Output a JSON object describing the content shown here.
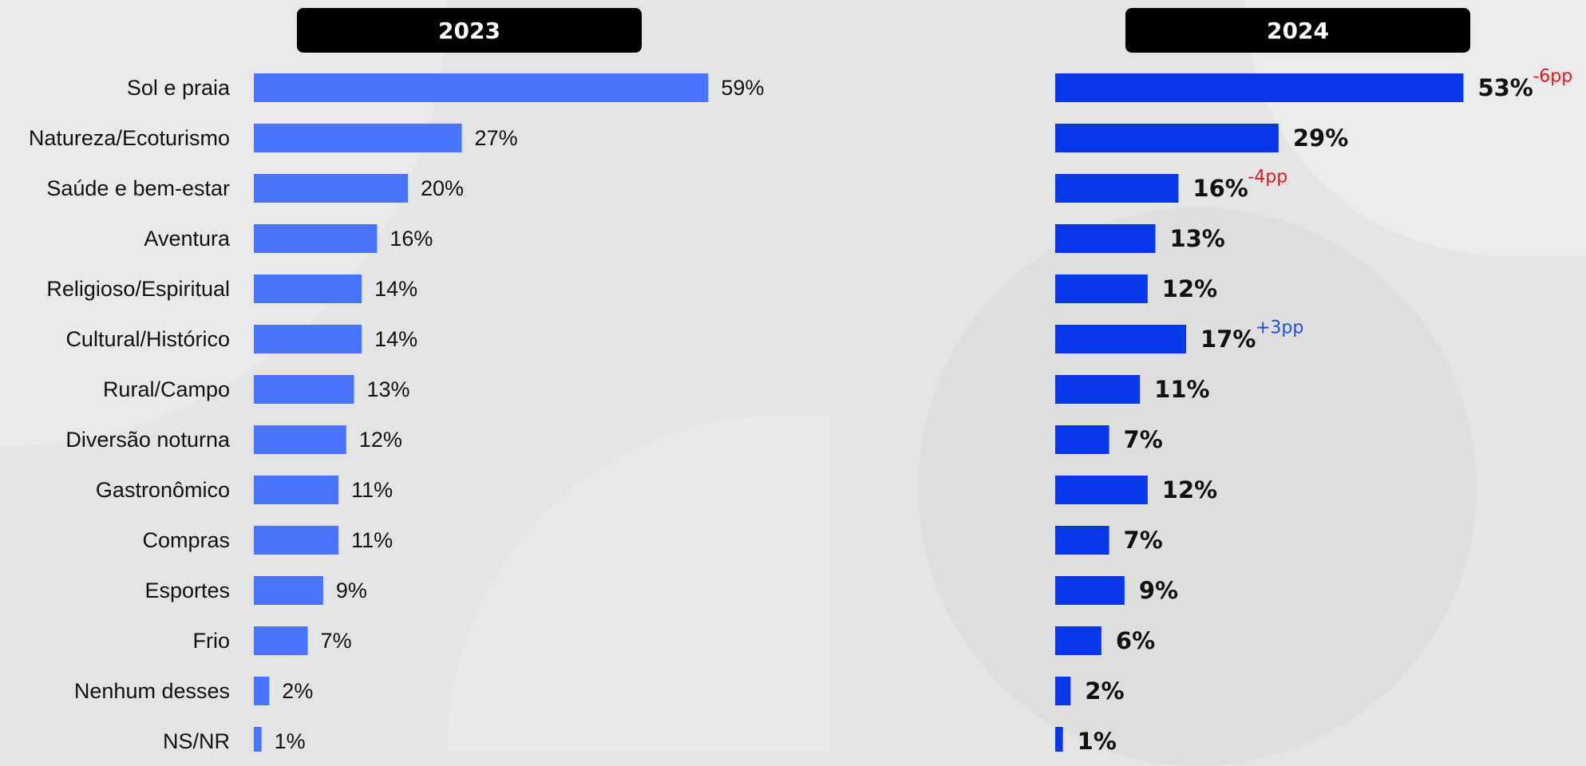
{
  "panels": [
    {
      "header": "2023"
    },
    {
      "header": "2024"
    }
  ],
  "chart_data": {
    "type": "bar",
    "orientation": "horizontal",
    "categories": [
      "Sol e praia",
      "Natureza/Ecoturismo",
      "Saúde e bem-estar",
      "Aventura",
      "Religioso/Espiritual",
      "Cultural/Histórico",
      "Rural/Campo",
      "Diversão noturna",
      "Gastronômico",
      "Compras",
      "Esportes",
      "Frio",
      "Nenhum desses",
      "NS/NR"
    ],
    "series": [
      {
        "name": "2023",
        "color": "#4a73ff",
        "values": [
          59,
          27,
          20,
          16,
          14,
          14,
          13,
          12,
          11,
          11,
          9,
          7,
          2,
          1
        ],
        "labels": [
          "59%",
          "27%",
          "20%",
          "16%",
          "14%",
          "14%",
          "13%",
          "12%",
          "11%",
          "11%",
          "9%",
          "7%",
          "2%",
          "1%"
        ]
      },
      {
        "name": "2024",
        "color": "#0737e6",
        "values": [
          53,
          29,
          16,
          13,
          12,
          17,
          11,
          7,
          12,
          7,
          9,
          6,
          2,
          1
        ],
        "labels": [
          "53%",
          "29%",
          "16%",
          "13%",
          "12%",
          "17%",
          "11%",
          "7%",
          "12%",
          "7%",
          "9%",
          "6%",
          "2%",
          "1%"
        ]
      }
    ],
    "annotations": [
      {
        "category": "Sol e praia",
        "text": "-6pp",
        "color": "#e8141b"
      },
      {
        "category": "Saúde e bem-estar",
        "text": "-4pp",
        "color": "#e8141b"
      },
      {
        "category": "Cultural/Histórico",
        "text": "+3pp",
        "color": "#1e4fe0"
      }
    ]
  }
}
